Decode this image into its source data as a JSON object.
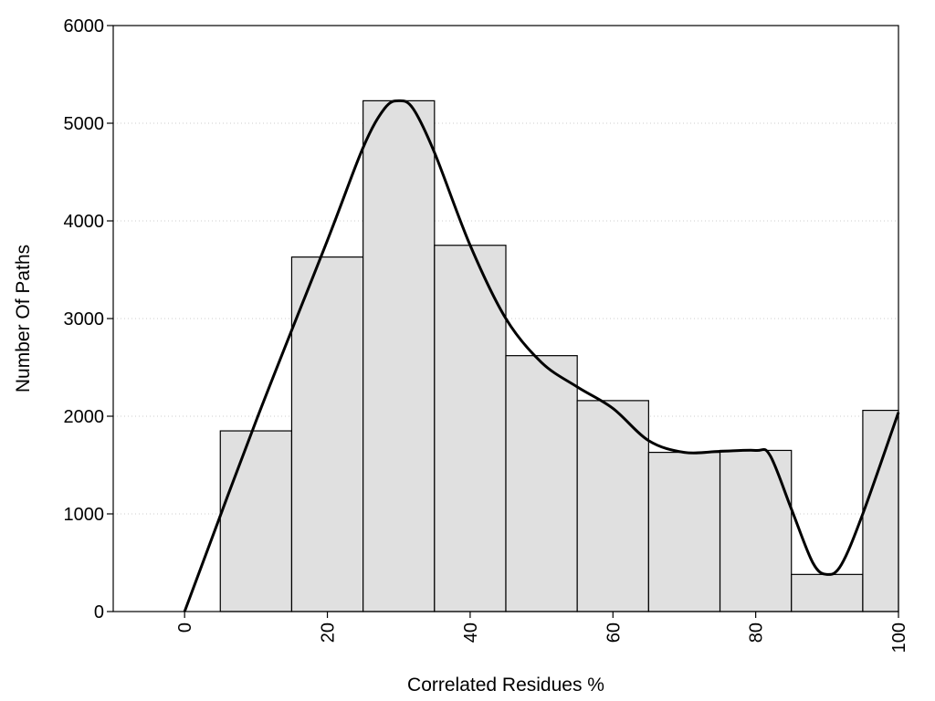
{
  "chart_data": {
    "type": "bar",
    "xlabel": "Correlated Residues %",
    "ylabel": "Number Of Paths",
    "xlim": [
      -10,
      100
    ],
    "ylim": [
      0,
      6000
    ],
    "x_ticks": [
      0,
      20,
      40,
      60,
      80,
      100
    ],
    "y_ticks": [
      0,
      1000,
      2000,
      3000,
      4000,
      5000,
      6000
    ],
    "bins": [
      {
        "x0": 5,
        "x1": 15,
        "value": 1850
      },
      {
        "x0": 15,
        "x1": 25,
        "value": 3630
      },
      {
        "x0": 25,
        "x1": 35,
        "value": 5230
      },
      {
        "x0": 35,
        "x1": 45,
        "value": 3750
      },
      {
        "x0": 45,
        "x1": 55,
        "value": 2620
      },
      {
        "x0": 55,
        "x1": 65,
        "value": 2160
      },
      {
        "x0": 65,
        "x1": 75,
        "value": 1630
      },
      {
        "x0": 75,
        "x1": 85,
        "value": 1650
      },
      {
        "x0": 85,
        "x1": 95,
        "value": 380
      },
      {
        "x0": 95,
        "x1": 100,
        "value": 2060
      }
    ],
    "curve": {
      "x": [
        0,
        10,
        20,
        25,
        28,
        30,
        32,
        35,
        40,
        45,
        50,
        55,
        60,
        65,
        70,
        75,
        80,
        82,
        85,
        88,
        90,
        92,
        95,
        100
      ],
      "y": [
        0,
        1950,
        3800,
        4750,
        5150,
        5230,
        5150,
        4700,
        3750,
        3000,
        2550,
        2300,
        2080,
        1750,
        1630,
        1640,
        1650,
        1600,
        1050,
        500,
        380,
        480,
        1000,
        2040
      ]
    },
    "grid": true,
    "colors": {
      "bar_fill": "#e0e0e0",
      "bar_stroke": "#000000",
      "curve": "#000000",
      "grid": "#cccccc"
    }
  }
}
